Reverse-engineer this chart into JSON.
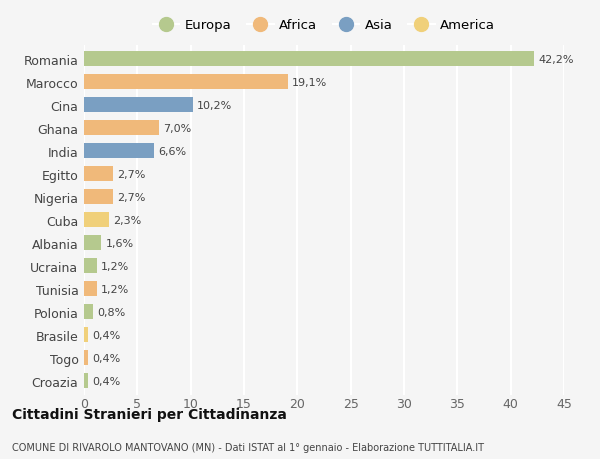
{
  "countries": [
    "Romania",
    "Marocco",
    "Cina",
    "Ghana",
    "India",
    "Egitto",
    "Nigeria",
    "Cuba",
    "Albania",
    "Ucraina",
    "Tunisia",
    "Polonia",
    "Brasile",
    "Togo",
    "Croazia"
  ],
  "values": [
    42.2,
    19.1,
    10.2,
    7.0,
    6.6,
    2.7,
    2.7,
    2.3,
    1.6,
    1.2,
    1.2,
    0.8,
    0.4,
    0.4,
    0.4
  ],
  "labels": [
    "42,2%",
    "19,1%",
    "10,2%",
    "7,0%",
    "6,6%",
    "2,7%",
    "2,7%",
    "2,3%",
    "1,6%",
    "1,2%",
    "1,2%",
    "0,8%",
    "0,4%",
    "0,4%",
    "0,4%"
  ],
  "continents": [
    "Europa",
    "Africa",
    "Asia",
    "Africa",
    "Asia",
    "Africa",
    "Africa",
    "America",
    "Europa",
    "Europa",
    "Africa",
    "Europa",
    "America",
    "Africa",
    "Europa"
  ],
  "colors": {
    "Europa": "#b5c98e",
    "Africa": "#f0b97a",
    "Asia": "#7a9fc2",
    "America": "#f0d07a"
  },
  "legend_order": [
    "Europa",
    "Africa",
    "Asia",
    "America"
  ],
  "title": "Cittadini Stranieri per Cittadinanza",
  "subtitle": "COMUNE DI RIVAROLO MANTOVANO (MN) - Dati ISTAT al 1° gennaio - Elaborazione TUTTITALIA.IT",
  "xlim": [
    0,
    45
  ],
  "xticks": [
    0,
    5,
    10,
    15,
    20,
    25,
    30,
    35,
    40,
    45
  ],
  "background_color": "#f5f5f5",
  "grid_color": "#ffffff"
}
